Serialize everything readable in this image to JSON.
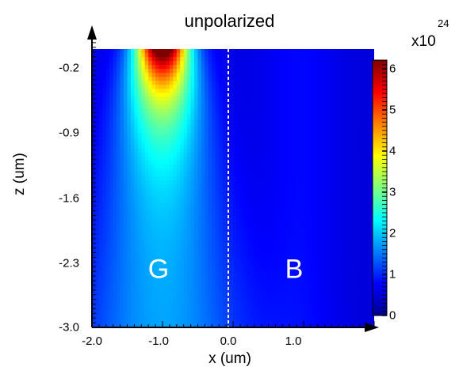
{
  "chart_data": {
    "type": "heatmap",
    "title": "unpolarized",
    "xlabel": "x (um)",
    "ylabel": "z (um)",
    "xlim": [
      -2.0,
      2.0
    ],
    "ylim": [
      -3.0,
      0.1
    ],
    "x_ticks": [
      "-2.0",
      "-1.0",
      "0.0",
      "1.0"
    ],
    "y_ticks": [
      "-0.2",
      "-0.9",
      "-1.6",
      "-2.3",
      "-3.0"
    ],
    "colorbar": {
      "label_base": "x10",
      "label_exponent": "24",
      "range": [
        0,
        6.2
      ],
      "ticks": [
        "0",
        "1",
        "2",
        "3",
        "4",
        "5",
        "6"
      ]
    },
    "colorscale": "jet",
    "region_labels": [
      {
        "text": "G",
        "x": -1.0,
        "z": -2.55
      },
      {
        "text": "B",
        "x": 0.95,
        "z": -2.55
      }
    ],
    "divider": {
      "x": 0.0,
      "style": "dashed",
      "color": "#ffffff"
    },
    "hotspot": {
      "x": -1.0,
      "z": 0.1,
      "peak_value": 6.2
    }
  }
}
